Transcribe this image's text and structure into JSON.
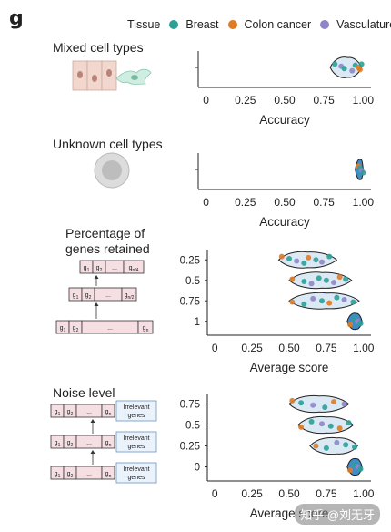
{
  "panel_letter": "g",
  "legend": {
    "title": "Tissue",
    "items": [
      {
        "label": "Breast",
        "color": "#2aa198"
      },
      {
        "label": "Colon cancer",
        "color": "#e07b25"
      },
      {
        "label": "Vasculature",
        "color": "#8f86c9"
      }
    ]
  },
  "sections": {
    "mixed": {
      "title": "Mixed cell types"
    },
    "unknown": {
      "title": "Unknown cell types"
    },
    "genes": {
      "title_line1": "Percentage of",
      "title_line2": "genes retained",
      "diagram_rows": [
        [
          "g1",
          "g2",
          "...",
          "gn/4"
        ],
        [
          "g1",
          "g2",
          "...",
          "gn/2"
        ],
        [
          "g1",
          "g2",
          "...",
          "gn"
        ]
      ]
    },
    "noise": {
      "title": "Noise level",
      "diagram_rows": [
        {
          "cells": [
            "g1",
            "g2",
            "...",
            "gn"
          ],
          "note_line1": "Irrelevant",
          "note_line2": "genes"
        },
        {
          "cells": [
            "g1",
            "g2",
            "...",
            "gn"
          ],
          "note_line1": "Irrelevant",
          "note_line2": "genes"
        },
        {
          "cells": [
            "g1",
            "g2",
            "...",
            "gn"
          ],
          "note_line1": "Irrelevant",
          "note_line2": "genes"
        }
      ]
    }
  },
  "chart_data": [
    {
      "type": "violin",
      "xlabel": "Accuracy",
      "xticks": [
        "0",
        "0.25",
        "0.50",
        "0.75",
        "1.00"
      ],
      "xlim": [
        -0.05,
        1.05
      ],
      "categories": [
        ""
      ],
      "violins": [
        {
          "center": 0.9,
          "min": 0.79,
          "max": 0.99
        }
      ],
      "points": [
        {
          "y": "",
          "x": 0.82,
          "tissue": "Breast"
        },
        {
          "y": "",
          "x": 0.86,
          "tissue": "Vasculature"
        },
        {
          "y": "",
          "x": 0.88,
          "tissue": "Breast"
        },
        {
          "y": "",
          "x": 0.93,
          "tissue": "Vasculature"
        },
        {
          "y": "",
          "x": 0.95,
          "tissue": "Breast"
        },
        {
          "y": "",
          "x": 0.97,
          "tissue": "Colon cancer"
        },
        {
          "y": "",
          "x": 0.98,
          "tissue": "Colon cancer"
        },
        {
          "y": "",
          "x": 0.99,
          "tissue": "Breast"
        }
      ]
    },
    {
      "type": "violin",
      "xlabel": "Accuracy",
      "xticks": [
        "0",
        "0.25",
        "0.50",
        "0.75",
        "1.00"
      ],
      "xlim": [
        -0.05,
        1.05
      ],
      "categories": [
        ""
      ],
      "violins": [
        {
          "center": 0.985,
          "min": 0.95,
          "max": 1.0
        }
      ],
      "points": [
        {
          "y": "",
          "x": 0.97,
          "tissue": "Colon cancer"
        },
        {
          "y": "",
          "x": 0.98,
          "tissue": "Breast"
        },
        {
          "y": "",
          "x": 0.99,
          "tissue": "Vasculature"
        },
        {
          "y": "",
          "x": 1.0,
          "tissue": "Breast"
        }
      ]
    },
    {
      "type": "violin",
      "xlabel": "Average score",
      "xticks": [
        "0",
        "0.25",
        "0.50",
        "0.75",
        "1.00"
      ],
      "xlim": [
        -0.05,
        1.05
      ],
      "categories": [
        "0.25",
        "0.5",
        "0.75",
        "1"
      ],
      "violins": [
        {
          "center": 0.62,
          "min": 0.43,
          "max": 0.82
        },
        {
          "center": 0.72,
          "min": 0.5,
          "max": 0.92
        },
        {
          "center": 0.75,
          "min": 0.5,
          "max": 0.97
        },
        {
          "center": 0.95,
          "min": 0.89,
          "max": 0.99
        }
      ],
      "points": [
        {
          "y": "0.25",
          "x": 0.45,
          "tissue": "Colon cancer"
        },
        {
          "y": "0.25",
          "x": 0.5,
          "tissue": "Breast"
        },
        {
          "y": "0.25",
          "x": 0.55,
          "tissue": "Vasculature"
        },
        {
          "y": "0.25",
          "x": 0.6,
          "tissue": "Breast"
        },
        {
          "y": "0.25",
          "x": 0.63,
          "tissue": "Colon cancer"
        },
        {
          "y": "0.25",
          "x": 0.68,
          "tissue": "Breast"
        },
        {
          "y": "0.25",
          "x": 0.72,
          "tissue": "Vasculature"
        },
        {
          "y": "0.25",
          "x": 0.77,
          "tissue": "Breast"
        },
        {
          "y": "0.5",
          "x": 0.52,
          "tissue": "Colon cancer"
        },
        {
          "y": "0.5",
          "x": 0.6,
          "tissue": "Breast"
        },
        {
          "y": "0.5",
          "x": 0.65,
          "tissue": "Vasculature"
        },
        {
          "y": "0.5",
          "x": 0.7,
          "tissue": "Breast"
        },
        {
          "y": "0.5",
          "x": 0.75,
          "tissue": "Breast"
        },
        {
          "y": "0.5",
          "x": 0.8,
          "tissue": "Vasculature"
        },
        {
          "y": "0.5",
          "x": 0.84,
          "tissue": "Colon cancer"
        },
        {
          "y": "0.5",
          "x": 0.88,
          "tissue": "Breast"
        },
        {
          "y": "0.75",
          "x": 0.52,
          "tissue": "Colon cancer"
        },
        {
          "y": "0.75",
          "x": 0.6,
          "tissue": "Breast"
        },
        {
          "y": "0.75",
          "x": 0.66,
          "tissue": "Vasculature"
        },
        {
          "y": "0.75",
          "x": 0.72,
          "tissue": "Breast"
        },
        {
          "y": "0.75",
          "x": 0.77,
          "tissue": "Colon cancer"
        },
        {
          "y": "0.75",
          "x": 0.82,
          "tissue": "Breast"
        },
        {
          "y": "0.75",
          "x": 0.87,
          "tissue": "Vasculature"
        },
        {
          "y": "0.75",
          "x": 0.93,
          "tissue": "Breast"
        },
        {
          "y": "1",
          "x": 0.91,
          "tissue": "Colon cancer"
        },
        {
          "y": "1",
          "x": 0.94,
          "tissue": "Breast"
        },
        {
          "y": "1",
          "x": 0.96,
          "tissue": "Vasculature"
        },
        {
          "y": "1",
          "x": 0.98,
          "tissue": "Breast"
        }
      ]
    },
    {
      "type": "violin",
      "xlabel": "Average score",
      "xticks": [
        "0",
        "0.25",
        "0.50",
        "0.75",
        "1.00"
      ],
      "xlim": [
        -0.05,
        1.05
      ],
      "categories": [
        "0.75",
        "0.5",
        "0.25",
        "0"
      ],
      "violins": [
        {
          "center": 0.7,
          "min": 0.5,
          "max": 0.9
        },
        {
          "center": 0.75,
          "min": 0.56,
          "max": 0.93
        },
        {
          "center": 0.82,
          "min": 0.64,
          "max": 0.96
        },
        {
          "center": 0.95,
          "min": 0.89,
          "max": 0.99
        }
      ],
      "points": [
        {
          "y": "0.75",
          "x": 0.52,
          "tissue": "Colon cancer"
        },
        {
          "y": "0.75",
          "x": 0.58,
          "tissue": "Breast"
        },
        {
          "y": "0.75",
          "x": 0.66,
          "tissue": "Vasculature"
        },
        {
          "y": "0.75",
          "x": 0.74,
          "tissue": "Breast"
        },
        {
          "y": "0.75",
          "x": 0.8,
          "tissue": "Colon cancer"
        },
        {
          "y": "0.75",
          "x": 0.87,
          "tissue": "Vasculature"
        },
        {
          "y": "0.5",
          "x": 0.58,
          "tissue": "Colon cancer"
        },
        {
          "y": "0.5",
          "x": 0.65,
          "tissue": "Breast"
        },
        {
          "y": "0.5",
          "x": 0.72,
          "tissue": "Vasculature"
        },
        {
          "y": "0.5",
          "x": 0.78,
          "tissue": "Breast"
        },
        {
          "y": "0.5",
          "x": 0.84,
          "tissue": "Colon cancer"
        },
        {
          "y": "0.5",
          "x": 0.9,
          "tissue": "Breast"
        },
        {
          "y": "0.25",
          "x": 0.68,
          "tissue": "Colon cancer"
        },
        {
          "y": "0.25",
          "x": 0.75,
          "tissue": "Breast"
        },
        {
          "y": "0.25",
          "x": 0.82,
          "tissue": "Vasculature"
        },
        {
          "y": "0.25",
          "x": 0.88,
          "tissue": "Breast"
        },
        {
          "y": "0.25",
          "x": 0.94,
          "tissue": "Breast"
        },
        {
          "y": "0",
          "x": 0.91,
          "tissue": "Colon cancer"
        },
        {
          "y": "0",
          "x": 0.94,
          "tissue": "Breast"
        },
        {
          "y": "0",
          "x": 0.96,
          "tissue": "Vasculature"
        },
        {
          "y": "0",
          "x": 0.98,
          "tissue": "Breast"
        }
      ]
    }
  ],
  "watermark": "知乎 @刘无牙"
}
